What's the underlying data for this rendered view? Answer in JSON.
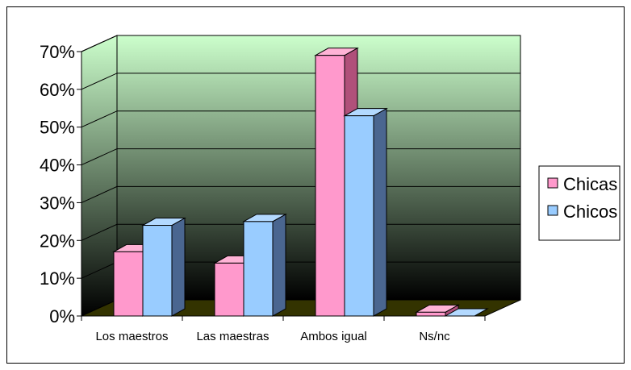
{
  "chart_data": {
    "type": "bar",
    "categories": [
      "Los maestros",
      "Las maestras",
      "Ambos igual",
      "Ns/nc"
    ],
    "series": [
      {
        "name": "Chicas",
        "values": [
          17,
          14,
          69,
          1
        ],
        "color": "#ff99cc",
        "side_color": "#b0507a",
        "top_color": "#ffb3d6"
      },
      {
        "name": "Chicos",
        "values": [
          24,
          25,
          53,
          0
        ],
        "color": "#99ccff",
        "side_color": "#4a6690",
        "top_color": "#b3d9ff"
      }
    ],
    "y_ticks": [
      "0%",
      "10%",
      "20%",
      "30%",
      "40%",
      "50%",
      "60%",
      "70%"
    ],
    "ylim": [
      0,
      70
    ],
    "grid": true,
    "legend_position": "right",
    "wall_gradient": [
      "#ccffcc",
      "#000000"
    ],
    "floor_color": "#333300"
  }
}
